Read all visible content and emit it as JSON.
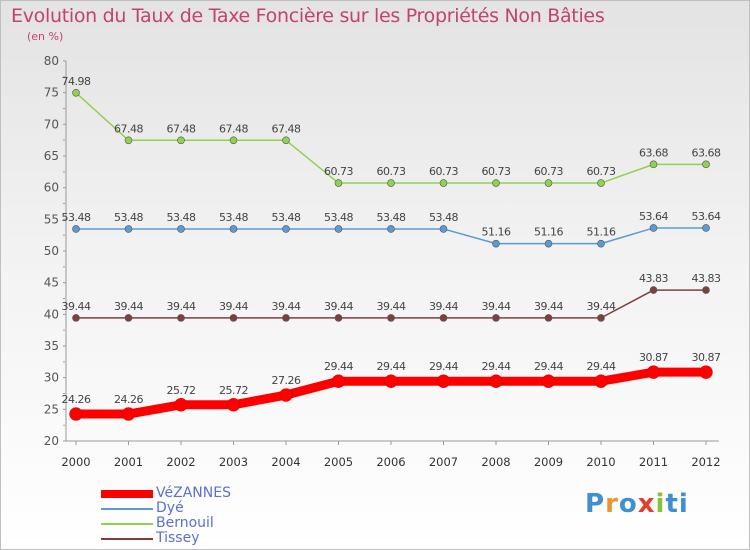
{
  "chart_data": {
    "type": "line",
    "title": "Evolution du Taux de Taxe Foncière sur les Propriétés Non Bâties",
    "subtitle": "(en %)",
    "xlabel": "",
    "ylabel": "(en %)",
    "categories": [
      "2000",
      "2001",
      "2002",
      "2003",
      "2004",
      "2005",
      "2006",
      "2007",
      "2008",
      "2009",
      "2010",
      "2011",
      "2012"
    ],
    "ylim": [
      20,
      80
    ],
    "yticks": [
      "20",
      "25",
      "30",
      "35",
      "40",
      "45",
      "50",
      "55",
      "60",
      "65",
      "70",
      "75",
      "80"
    ],
    "series": [
      {
        "name": "VéZANNES",
        "color": "#ff0000",
        "values": [
          24.26,
          24.26,
          25.72,
          25.72,
          27.26,
          29.44,
          29.44,
          29.44,
          29.44,
          29.44,
          29.44,
          30.87,
          30.87
        ],
        "labels": [
          "24.26",
          "24.26",
          "25.72",
          "25.72",
          "27.26",
          "29.44",
          "29.44",
          "29.44",
          "29.44",
          "29.44",
          "29.44",
          "30.87",
          "30.87"
        ]
      },
      {
        "name": "Dyé",
        "color": "#5b9bd5",
        "values": [
          53.48,
          53.48,
          53.48,
          53.48,
          53.48,
          53.48,
          53.48,
          53.48,
          51.16,
          51.16,
          51.16,
          53.64,
          53.64
        ],
        "labels": [
          "53.48",
          "53.48",
          "53.48",
          "53.48",
          "53.48",
          "53.48",
          "53.48",
          "53.48",
          "51.16",
          "51.16",
          "51.16",
          "53.64",
          "53.64"
        ]
      },
      {
        "name": "Bernouil",
        "color": "#92d050",
        "values": [
          74.98,
          67.48,
          67.48,
          67.48,
          67.48,
          60.73,
          60.73,
          60.73,
          60.73,
          60.73,
          60.73,
          63.68,
          63.68
        ],
        "labels": [
          "74.98",
          "67.48",
          "67.48",
          "67.48",
          "67.48",
          "60.73",
          "60.73",
          "60.73",
          "60.73",
          "60.73",
          "60.73",
          "63.68",
          "63.68"
        ]
      },
      {
        "name": "Tissey",
        "color": "#7f3f3f",
        "values": [
          39.44,
          39.44,
          39.44,
          39.44,
          39.44,
          39.44,
          39.44,
          39.44,
          39.44,
          39.44,
          39.44,
          43.83,
          43.83
        ],
        "labels": [
          "39.44",
          "39.44",
          "39.44",
          "39.44",
          "39.44",
          "39.44",
          "39.44",
          "39.44",
          "39.44",
          "39.44",
          "39.44",
          "43.83",
          "43.83"
        ]
      }
    ],
    "grid": false,
    "legend": "bottom-left"
  },
  "logo": {
    "name": "Proxiti",
    "letters": [
      "P",
      "r",
      "o",
      "x",
      "i",
      "ti"
    ]
  }
}
